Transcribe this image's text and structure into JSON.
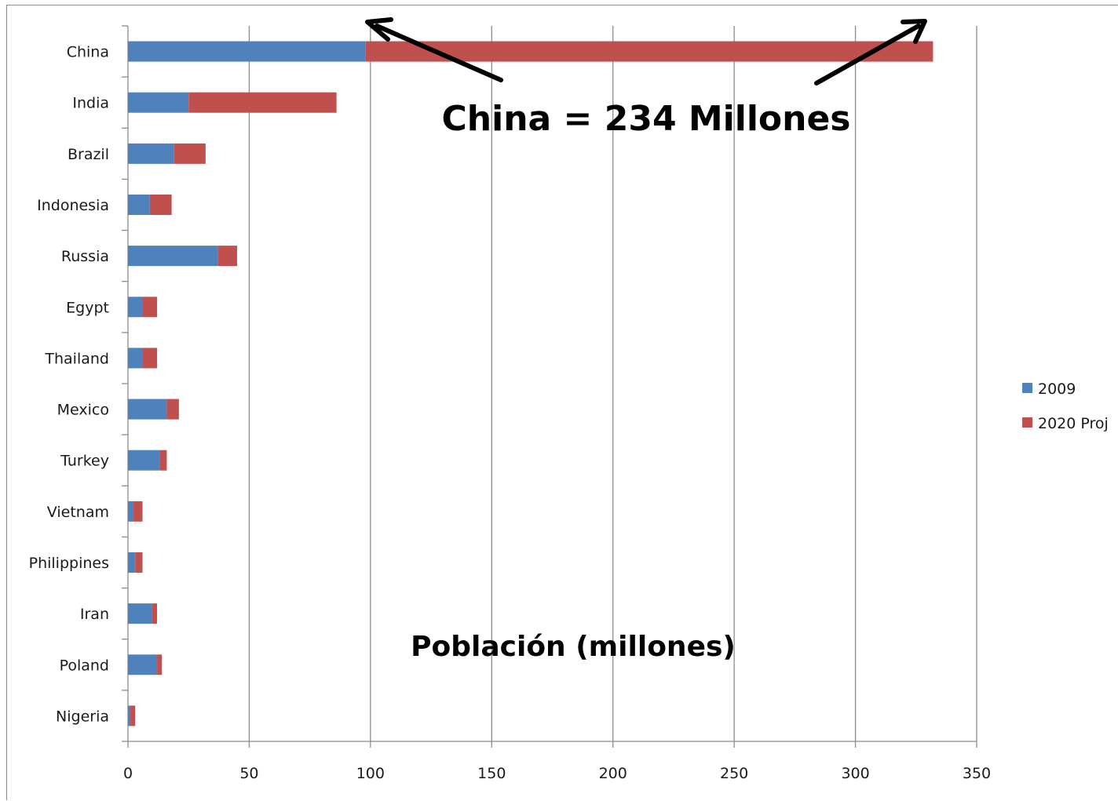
{
  "chart_data": {
    "type": "bar",
    "orientation": "horizontal",
    "stacked": true,
    "categories": [
      "China",
      "India",
      "Brazil",
      "Indonesia",
      "Russia",
      "Egypt",
      "Thailand",
      "Mexico",
      "Turkey",
      "Vietnam",
      "Philippines",
      "Iran",
      "Poland",
      "Nigeria"
    ],
    "series": [
      {
        "name": "2009",
        "color": "#4f81bd",
        "values": [
          98,
          25,
          19,
          9,
          37,
          6,
          6,
          16,
          13,
          2,
          3,
          10,
          12,
          1
        ]
      },
      {
        "name": "2020 Proj",
        "color": "#c0504d",
        "values": [
          234,
          61,
          13,
          9,
          8,
          6,
          6,
          5,
          3,
          4,
          3,
          2,
          2,
          2
        ]
      }
    ],
    "xlim": [
      0,
      350
    ],
    "xticks": [
      "0",
      "50",
      "100",
      "150",
      "200",
      "250",
      "300",
      "350"
    ],
    "grid": true,
    "legend_position": "right",
    "annotations": [
      {
        "text": "China = 234 Millones"
      },
      {
        "text": "Población (millones)"
      }
    ]
  }
}
